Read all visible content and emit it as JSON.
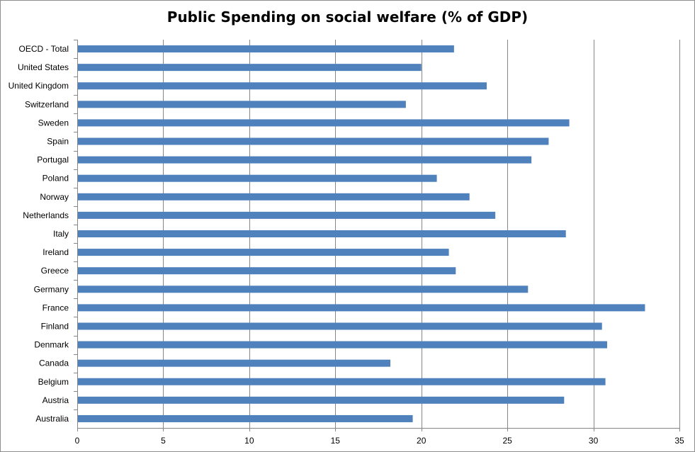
{
  "chart_data": {
    "type": "bar",
    "orientation": "horizontal",
    "title": "Public Spending on social welfare (% of GDP)",
    "xlabel": "",
    "ylabel": "",
    "xlim": [
      0,
      35
    ],
    "x_ticks": [
      0,
      5,
      10,
      15,
      20,
      25,
      30,
      35
    ],
    "grid": "vertical",
    "legend": "none",
    "bar_color": "#4f81bd",
    "categories": [
      "OECD - Total",
      "United States",
      "United Kingdom",
      "Switzerland",
      "Sweden",
      "Spain",
      "Portugal",
      "Poland",
      "Norway",
      "Netherlands",
      "Italy",
      "Ireland",
      "Greece",
      "Germany",
      "France",
      "Finland",
      "Denmark",
      "Canada",
      "Belgium",
      "Austria",
      "Australia"
    ],
    "values": [
      21.9,
      20.0,
      23.8,
      19.1,
      28.6,
      27.4,
      26.4,
      20.9,
      22.8,
      24.3,
      28.4,
      21.6,
      22.0,
      26.2,
      33.0,
      30.5,
      30.8,
      18.2,
      30.7,
      28.3,
      19.5
    ]
  }
}
